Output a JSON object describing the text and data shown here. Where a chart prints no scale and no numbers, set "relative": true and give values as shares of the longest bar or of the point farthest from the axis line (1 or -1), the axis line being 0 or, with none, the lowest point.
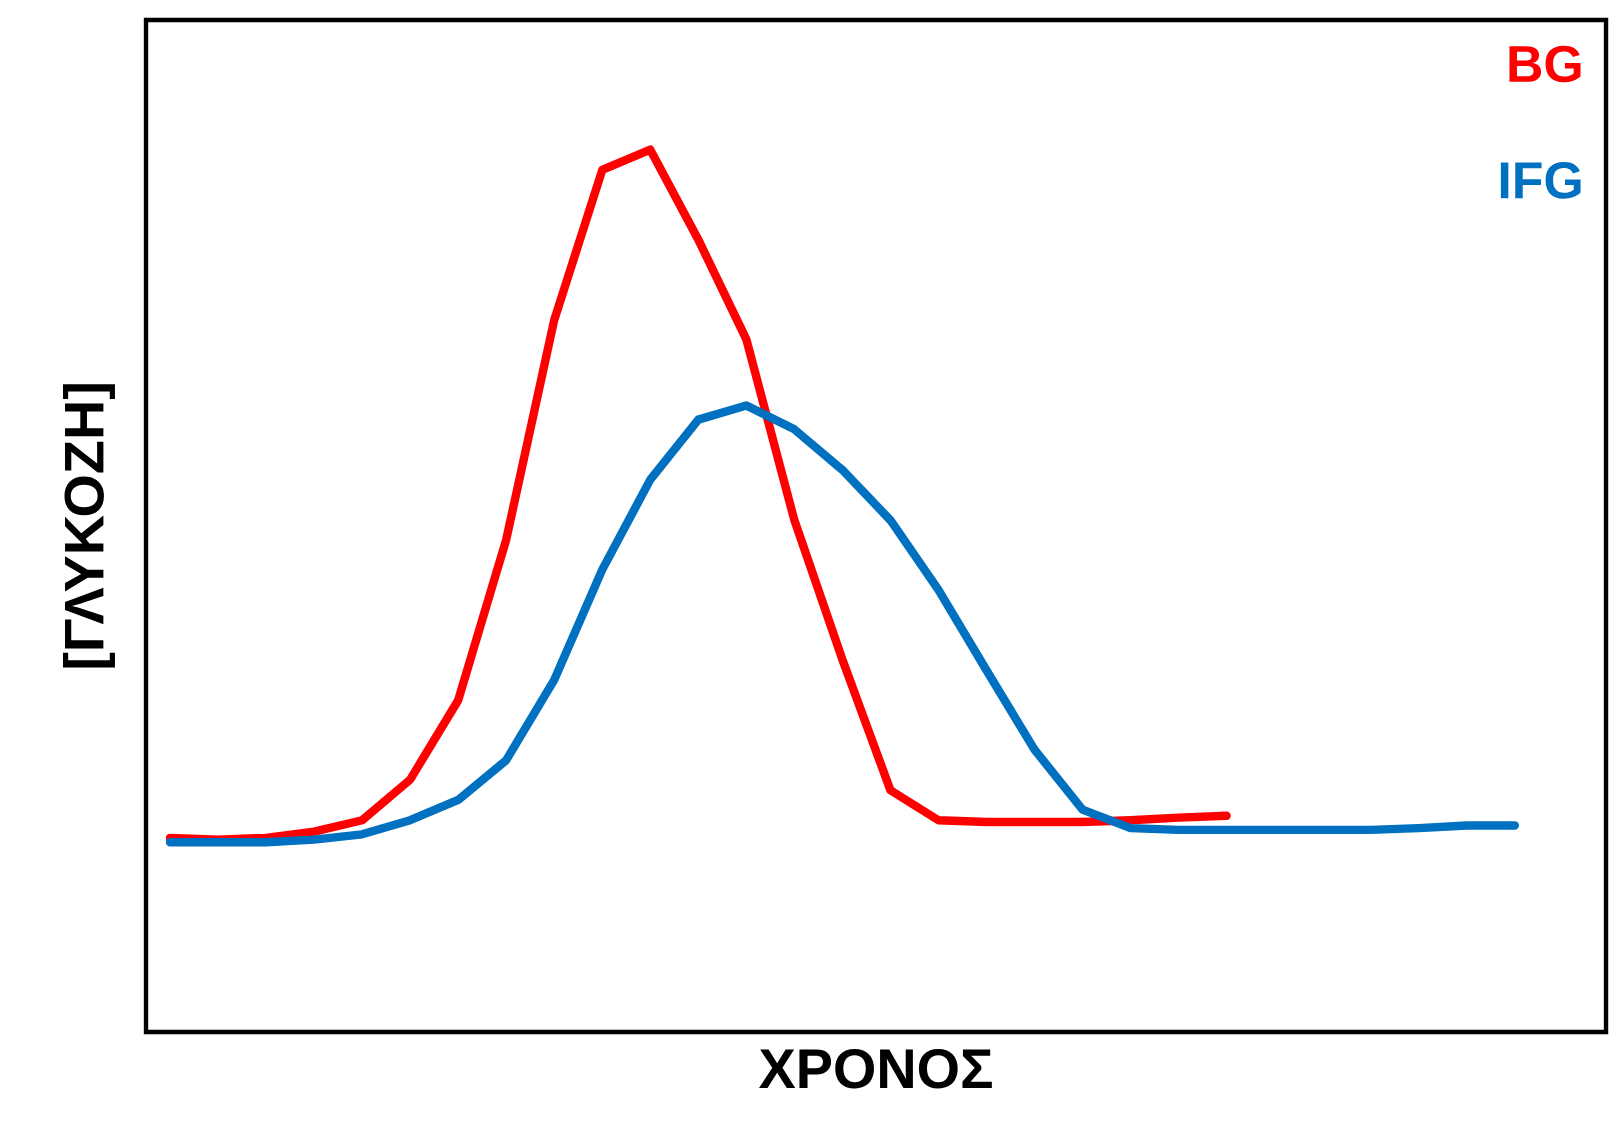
{
  "chart_data": {
    "type": "line",
    "xlabel": "ΧΡΟΝΟΣ",
    "ylabel": "[ΓΛΥΚΟΖΗ]",
    "relative": true,
    "legend": "top right",
    "marker": "none",
    "line_style": "solid",
    "grid": false,
    "categories": [
      null,
      null,
      null,
      null,
      null,
      null,
      null,
      null,
      null,
      null,
      null,
      null,
      null,
      null,
      null,
      null,
      null,
      null,
      null,
      null,
      null,
      null,
      null,
      null,
      null,
      null,
      null,
      null,
      null
    ],
    "series": [
      {
        "name": "BG",
        "color": "#ff0000",
        "values": [
          0.22,
          0.218,
          0.22,
          0.227,
          0.24,
          0.286,
          0.376,
          0.558,
          0.807,
          0.977,
          1.0,
          0.898,
          0.785,
          0.58,
          0.422,
          0.274,
          0.24,
          0.238,
          0.238,
          0.238,
          0.24,
          0.243,
          0.245,
          null,
          null,
          null,
          null,
          null,
          null
        ]
      },
      {
        "name": "IFG",
        "color": "#0070c0",
        "values": [
          0.215,
          0.215,
          0.215,
          0.218,
          0.224,
          0.24,
          0.263,
          0.308,
          0.399,
          0.524,
          0.626,
          0.694,
          0.71,
          0.683,
          0.637,
          0.58,
          0.501,
          0.41,
          0.32,
          0.252,
          0.231,
          0.229,
          0.229,
          0.229,
          0.229,
          0.229,
          0.231,
          0.234,
          0.234
        ]
      }
    ]
  }
}
